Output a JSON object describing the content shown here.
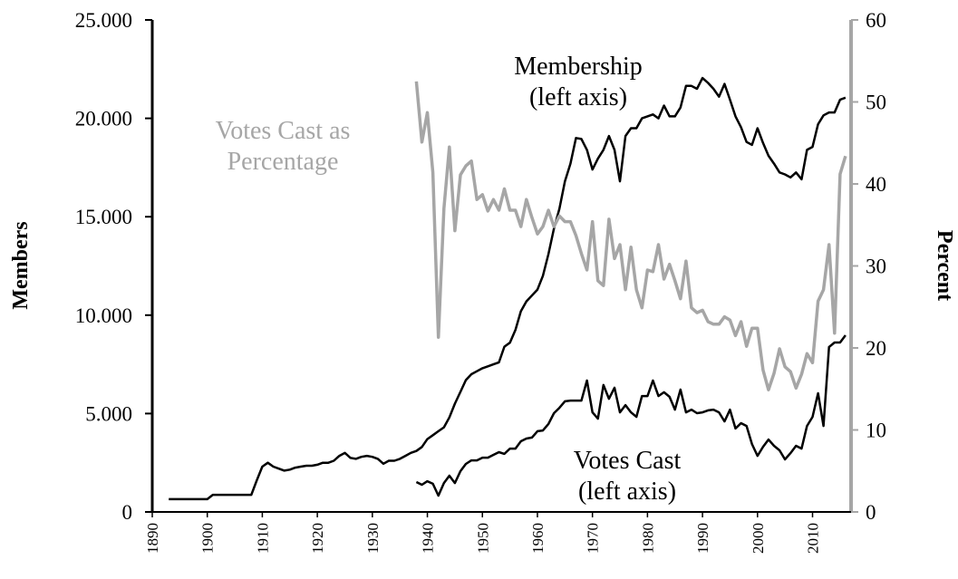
{
  "chart_data": {
    "type": "line",
    "y_label": "Members",
    "y2_label": "Percent",
    "x": [
      1893,
      1894,
      1895,
      1896,
      1897,
      1898,
      1899,
      1900,
      1901,
      1902,
      1903,
      1904,
      1905,
      1906,
      1907,
      1908,
      1909,
      1910,
      1911,
      1912,
      1913,
      1914,
      1915,
      1916,
      1917,
      1918,
      1919,
      1920,
      1921,
      1922,
      1923,
      1924,
      1925,
      1926,
      1927,
      1928,
      1929,
      1930,
      1931,
      1932,
      1933,
      1934,
      1935,
      1936,
      1937,
      1938,
      1939,
      1940,
      1941,
      1942,
      1943,
      1944,
      1945,
      1946,
      1947,
      1948,
      1949,
      1950,
      1951,
      1952,
      1953,
      1954,
      1955,
      1956,
      1957,
      1958,
      1959,
      1960,
      1961,
      1962,
      1963,
      1964,
      1965,
      1966,
      1967,
      1968,
      1969,
      1970,
      1971,
      1972,
      1973,
      1974,
      1975,
      1976,
      1977,
      1978,
      1979,
      1980,
      1981,
      1982,
      1983,
      1984,
      1985,
      1986,
      1987,
      1988,
      1989,
      1990,
      1991,
      1992,
      1993,
      1994,
      1995,
      1996,
      1997,
      1998,
      1999,
      2000,
      2001,
      2002,
      2003,
      2004,
      2005,
      2006,
      2007,
      2008,
      2009,
      2010,
      2011,
      2012,
      2013,
      2014,
      2015,
      2016
    ],
    "series": [
      {
        "color": "#000000",
        "values": [
          650,
          650,
          650,
          650,
          650,
          650,
          650,
          650,
          870,
          870,
          870,
          870,
          870,
          870,
          870,
          870,
          1600,
          2300,
          2500,
          2300,
          2200,
          2100,
          2150,
          2250,
          2300,
          2350,
          2350,
          2400,
          2500,
          2500,
          2600,
          2850,
          3000,
          2750,
          2700,
          2800,
          2850,
          2800,
          2700,
          2450,
          2600,
          2600,
          2700,
          2850,
          3000,
          3100,
          3300,
          3700,
          3900,
          4100,
          4300,
          4800,
          5500,
          6100,
          6700,
          7000,
          7150,
          7300,
          7400,
          7500,
          7600,
          8400,
          8600,
          9250,
          10200,
          10700,
          11000,
          11300,
          12000,
          13100,
          14400,
          15400,
          16800,
          17700,
          19000,
          18950,
          18400,
          17400,
          17950,
          18400,
          19100,
          18400,
          16800,
          19100,
          19500,
          19500,
          20000,
          20100,
          20200,
          20000,
          20650,
          20100,
          20100,
          20550,
          21650,
          21650,
          21500,
          22050,
          21800,
          21500,
          21100,
          21750,
          20950,
          20100,
          19550,
          18800,
          18650,
          19500,
          18750,
          18100,
          17700,
          17250,
          17150,
          17000,
          17250,
          16900,
          18400,
          18550,
          19700,
          20150,
          20300,
          20300,
          20950,
          21050
        ]
      },
      {
        "color": "#a6a6a6",
        "axis": "y2",
        "values": [
          null,
          null,
          null,
          null,
          null,
          null,
          null,
          null,
          null,
          null,
          null,
          null,
          null,
          null,
          null,
          null,
          null,
          null,
          null,
          null,
          null,
          null,
          null,
          null,
          null,
          null,
          null,
          null,
          null,
          null,
          null,
          null,
          null,
          null,
          null,
          null,
          null,
          null,
          null,
          null,
          null,
          null,
          null,
          null,
          null,
          52.5,
          45.1,
          48.7,
          41.4,
          21.3,
          37,
          44.5,
          34.3,
          41.1,
          42.2,
          42.8,
          38.1,
          38.7,
          36.7,
          38.1,
          36.8,
          39.4,
          36.8,
          36.8,
          34.8,
          38.1,
          35.9,
          33.9,
          34.8,
          36.8,
          34.8,
          36.1,
          35.4,
          35.4,
          33.7,
          31.5,
          29.5,
          35.4,
          28.2,
          27.6,
          35.7,
          30.9,
          32.6,
          27.1,
          32.3,
          27.1,
          24.9,
          29.5,
          29.3,
          32.6,
          28.4,
          30.2,
          28.2,
          26,
          30.6,
          24.9,
          24.3,
          24.6,
          23.2,
          22.9,
          22.9,
          23.8,
          23.4,
          21.5,
          23.2,
          20.2,
          22.4,
          22.4,
          17.3,
          14.9,
          16.9,
          19.9,
          17.7,
          17.1,
          15.1,
          16.8,
          19.3,
          18.2,
          25.7,
          27.1,
          32.6,
          21.8,
          41.2,
          43.4
        ]
      },
      {
        "color": "#000000",
        "values": [
          null,
          null,
          null,
          null,
          null,
          null,
          null,
          null,
          null,
          null,
          null,
          null,
          null,
          null,
          null,
          null,
          null,
          null,
          null,
          null,
          null,
          null,
          null,
          null,
          null,
          null,
          null,
          null,
          null,
          null,
          null,
          null,
          null,
          null,
          null,
          null,
          null,
          null,
          null,
          null,
          null,
          null,
          null,
          null,
          null,
          1520,
          1380,
          1560,
          1430,
          830,
          1470,
          1840,
          1470,
          2070,
          2440,
          2620,
          2620,
          2760,
          2760,
          2900,
          3040,
          2950,
          3220,
          3220,
          3590,
          3730,
          3780,
          4100,
          4140,
          4470,
          5020,
          5290,
          5620,
          5660,
          5660,
          5660,
          6680,
          5060,
          4740,
          6450,
          5750,
          6310,
          5060,
          5430,
          5060,
          4830,
          5890,
          5890,
          6680,
          5890,
          6080,
          5850,
          5200,
          6220,
          5060,
          5200,
          5020,
          5060,
          5160,
          5200,
          5060,
          4600,
          5200,
          4240,
          4510,
          4370,
          3450,
          2850,
          3310,
          3680,
          3360,
          3130,
          2670,
          2990,
          3360,
          3220,
          4370,
          4830,
          6030,
          4370,
          8380,
          8610,
          8610,
          8980
        ]
      }
    ],
    "annotations": [
      {
        "lines": [
          "Membership",
          "(left axis)"
        ],
        "color": "#000000"
      },
      {
        "lines": [
          "Votes Cast as",
          "Percentage"
        ],
        "color": "#a6a6a6"
      },
      {
        "lines": [
          "Votes Cast",
          "(left axis)"
        ],
        "color": "#000000"
      }
    ],
    "xlim": [
      1890,
      2017
    ],
    "xticks": [
      1890,
      1900,
      1910,
      1920,
      1930,
      1940,
      1950,
      1960,
      1970,
      1980,
      1990,
      2000,
      2010
    ],
    "ylim": [
      0,
      25000
    ],
    "yticks": [
      0,
      {
        "value": 5000,
        "label": "5.000"
      },
      {
        "value": 10000,
        "label": "10.000"
      },
      {
        "value": 15000,
        "label": "15.000"
      },
      {
        "value": 20000,
        "label": "20.000"
      },
      {
        "value": 25000,
        "label": "25.000"
      }
    ],
    "y2lim": [
      0,
      60
    ],
    "y2ticks": [
      0,
      10,
      20,
      30,
      40,
      50,
      60
    ],
    "y2_color": "#a6a6a6"
  }
}
